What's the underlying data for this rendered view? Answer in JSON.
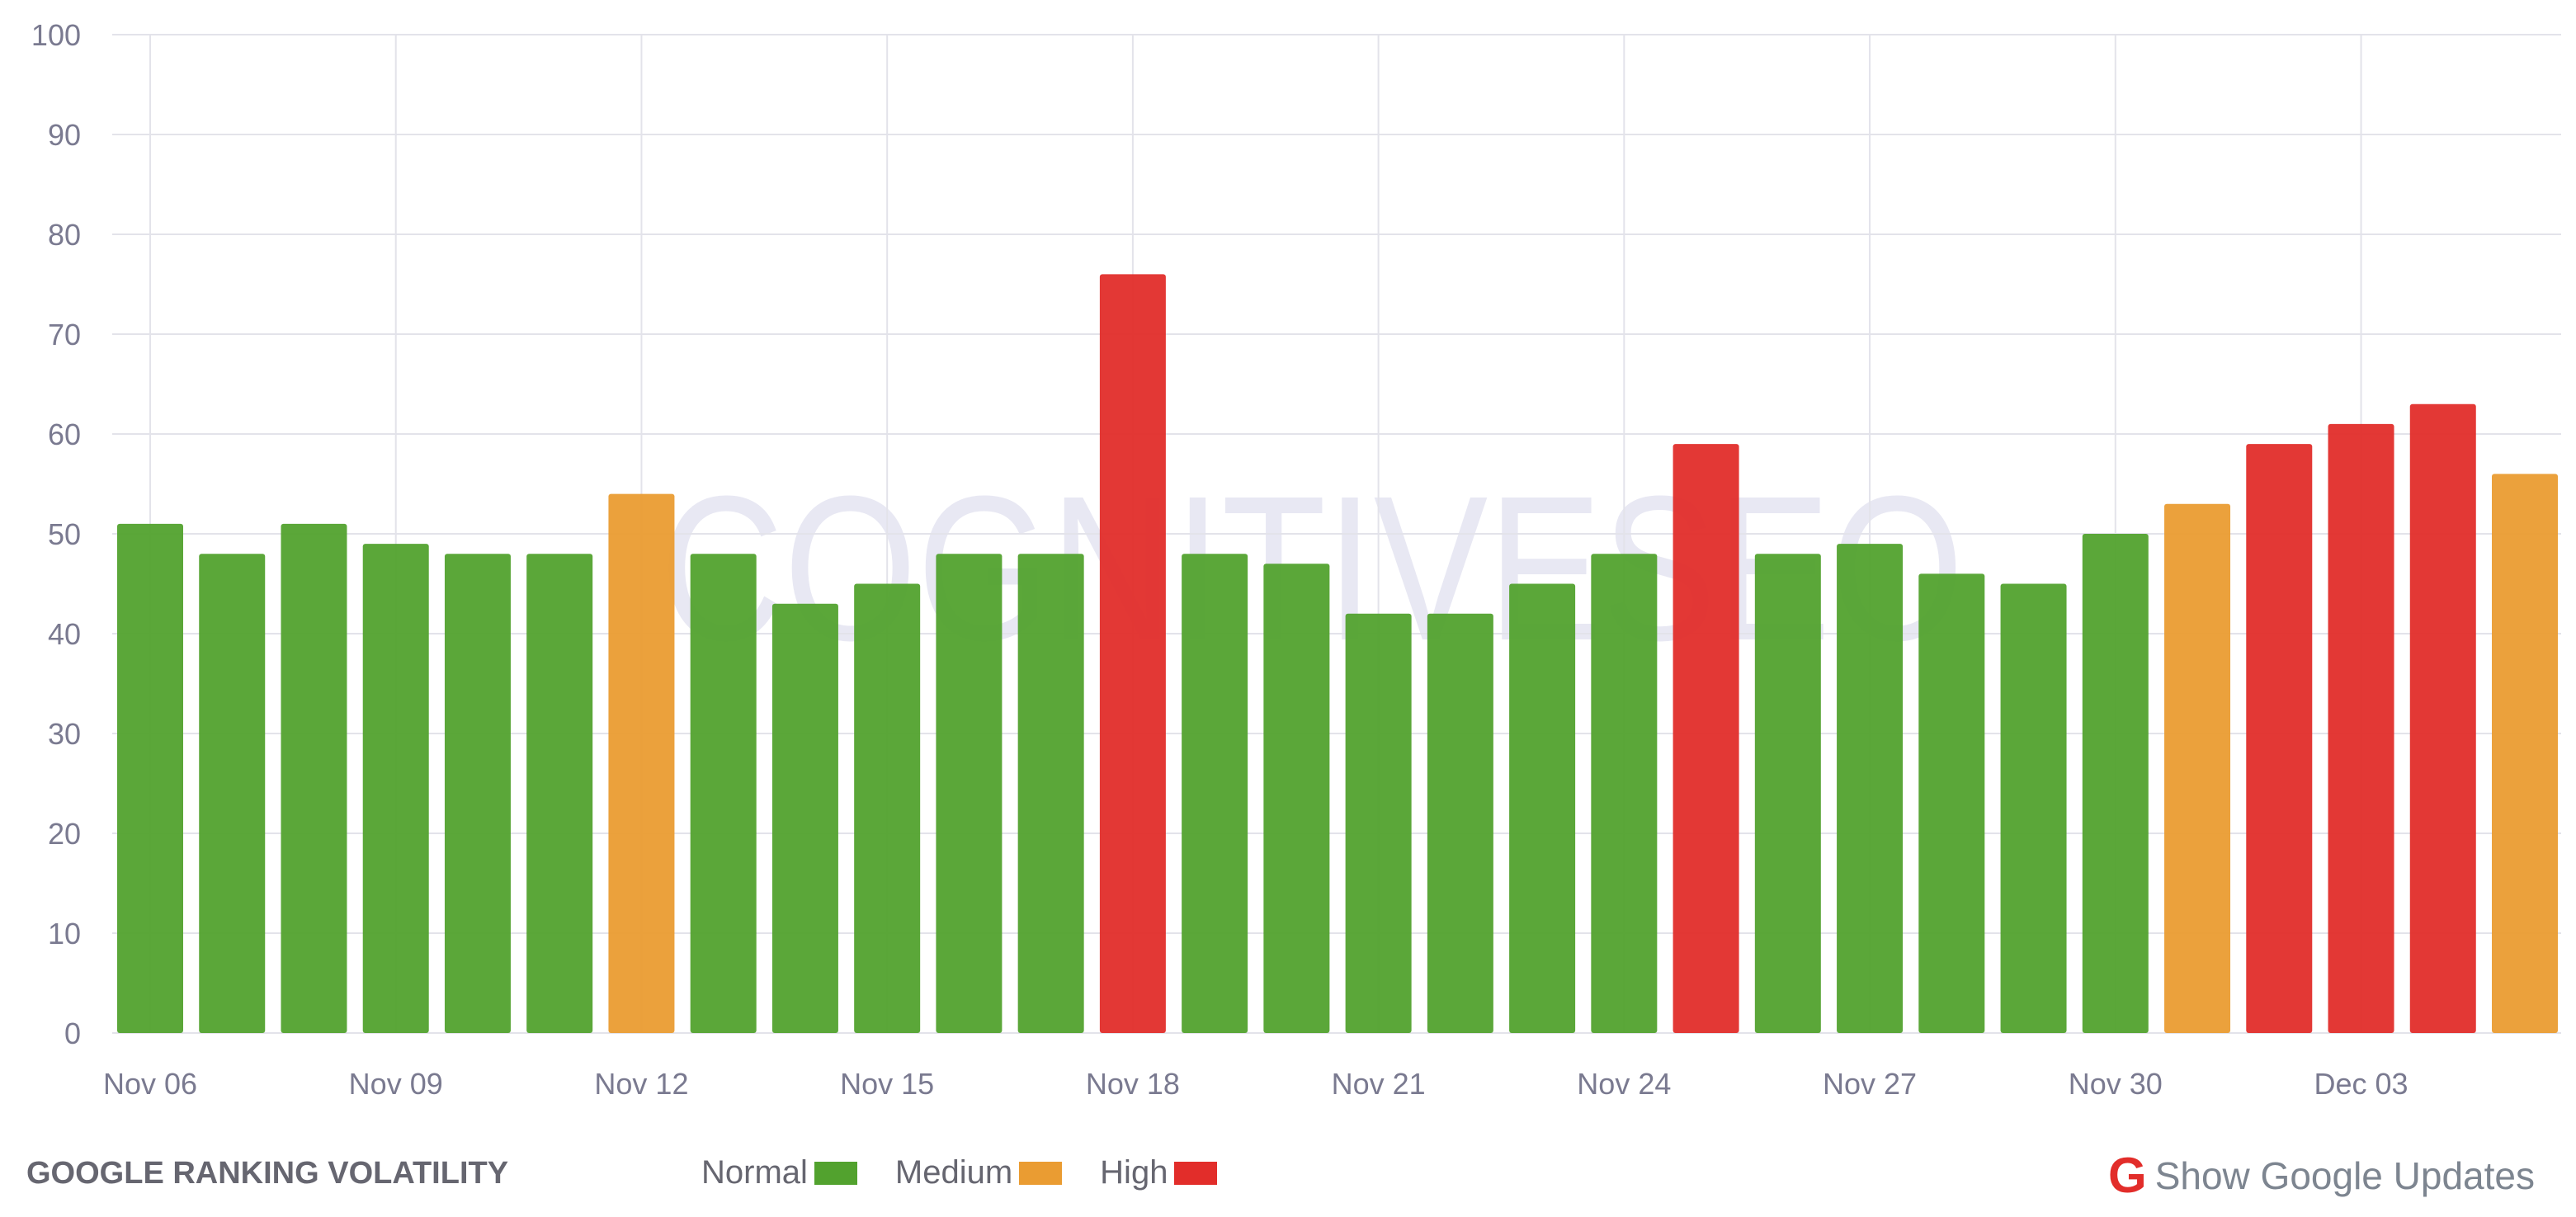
{
  "chart_data": {
    "type": "bar",
    "title": "GOOGLE RANKING VOLATILITY",
    "xlabel": "",
    "ylabel": "",
    "ylim": [
      0,
      100
    ],
    "yticks": [
      0,
      10,
      20,
      30,
      40,
      50,
      60,
      70,
      80,
      90,
      100
    ],
    "grid": true,
    "legend_placement": "bottom",
    "categories": [
      "Nov 06",
      "Nov 07",
      "Nov 08",
      "Nov 09",
      "Nov 10",
      "Nov 11",
      "Nov 12",
      "Nov 13",
      "Nov 14",
      "Nov 15",
      "Nov 16",
      "Nov 17",
      "Nov 18",
      "Nov 19",
      "Nov 20",
      "Nov 21",
      "Nov 22",
      "Nov 23",
      "Nov 24",
      "Nov 25",
      "Nov 26",
      "Nov 27",
      "Nov 28",
      "Nov 29",
      "Nov 30",
      "Dec 01",
      "Dec 02",
      "Dec 03",
      "Dec 04",
      "Dec 05"
    ],
    "xtick_labels": [
      "Nov 06",
      "Nov 09",
      "Nov 12",
      "Nov 15",
      "Nov 18",
      "Nov 21",
      "Nov 24",
      "Nov 27",
      "Nov 30",
      "Dec 03"
    ],
    "values": [
      51,
      48,
      51,
      49,
      48,
      48,
      54,
      48,
      43,
      45,
      48,
      48,
      76,
      48,
      47,
      42,
      42,
      45,
      48,
      59,
      48,
      49,
      46,
      45,
      50,
      53,
      59,
      61,
      63,
      56
    ],
    "levels": [
      "Normal",
      "Normal",
      "Normal",
      "Normal",
      "Normal",
      "Normal",
      "Medium",
      "Normal",
      "Normal",
      "Normal",
      "Normal",
      "Normal",
      "High",
      "Normal",
      "Normal",
      "Normal",
      "Normal",
      "Normal",
      "Normal",
      "High",
      "Normal",
      "Normal",
      "Normal",
      "Normal",
      "Normal",
      "Medium",
      "High",
      "High",
      "High",
      "Medium"
    ],
    "legend": [
      {
        "name": "Normal",
        "color": "#52a22e"
      },
      {
        "name": "Medium",
        "color": "#ea9c32"
      },
      {
        "name": "High",
        "color": "#e22d2a"
      }
    ]
  },
  "watermark": "COGNITIVESEO",
  "footer": {
    "show_updates_label": "Show Google Updates",
    "google_icon": "G"
  }
}
